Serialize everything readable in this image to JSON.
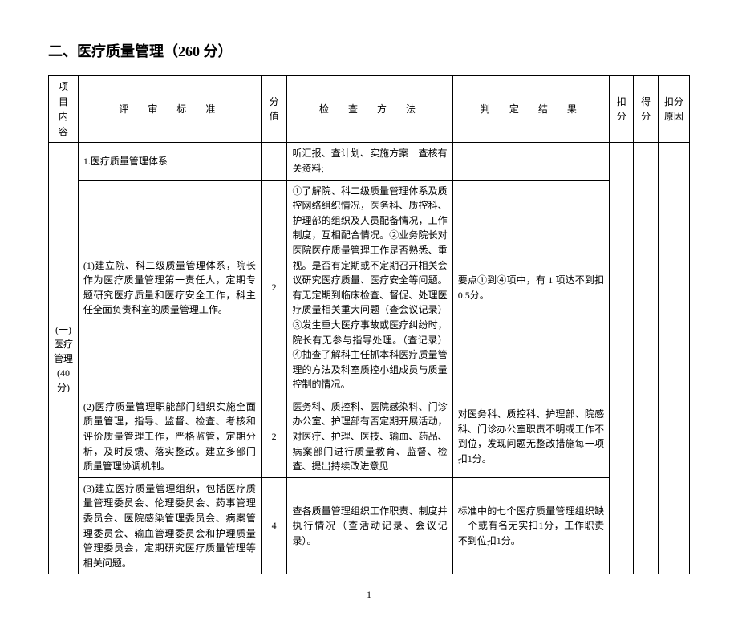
{
  "title": "二、医疗质量管理（260 分）",
  "headers": {
    "cat": "项　目内　容",
    "std": "评　审　标　准",
    "score": "分值",
    "method": "检　查　方　法",
    "result": "判　定　结　果",
    "koufen": "扣分",
    "defen": "得分",
    "kfyy": "扣分原因"
  },
  "category": "(一)医疗管理(40分)",
  "rows": [
    {
      "std": "1.医疗质量管理体系",
      "score": "",
      "method": "听汇报、查计划、实施方案　查核有关资料;",
      "result": ""
    },
    {
      "std": "(1)建立院、科二级质量管理体系，院长作为医疗质量管理第一责任人，定期专题研究医疗质量和医疗安全工作，科主任全面负责科室的质量管理工作。",
      "score": "2",
      "method": "①了解院、科二级质量管理体系及质控网络组织情况，医务科、质控科、护理部的组织及人员配备情况，工作制度，互相配合情况。②业务院长对医院医疗质量管理工作是否熟悉、重视。是否有定期或不定期召开相关会议研究医疗质量、医疗安全等问题。有无定期到临床检查、督促、处理医疗质量相关重大问题（查会议记录）③发生重大医疗事故或医疗纠纷时，院长有无参与指导处理。（查记录）④抽查了解科主任抓本科医疗质量管理的方法及科室质控小组成员与质量控制的情况。",
      "result": "要点①到④项中，有 1 项达不到扣0.5分。"
    },
    {
      "std": "(2)医疗质量管理职能部门组织实施全面质量管理，指导、监督、检查、考核和评价质量管理工作，严格监管，定期分析，及时反馈、落实整改。建立多部门质量管理协调机制。",
      "score": "2",
      "method": "医务科、质控科、医院感染科、门诊办公室、护理部有否定期开展活动，对医疗、护理、医技、输血、药品、病案部门进行质量教育、监督、检查、提出持续改进意见",
      "result": "对医务科、质控科、护理部、院感科、门诊办公室职责不明或工作不到位，发现问题无整改措施每一项扣1分。"
    },
    {
      "std": "(3)建立医疗质量管理组织，包括医疗质量管理委员会、伦理委员会、药事管理委员会、医院感染管理委员会、病案管理委员会、输血管理委员会和护理质量管理委员会，定期研究医疗质量管理等相关问题。",
      "score": "4",
      "method": "查各质量管理组织工作职责、制度并执行情况（查活动记录、会议记录）。",
      "result": "标准中的七个医疗质量管理组织缺一个或有名无实扣1分，工作职责不到位扣1分。"
    }
  ],
  "pageNumber": "1"
}
